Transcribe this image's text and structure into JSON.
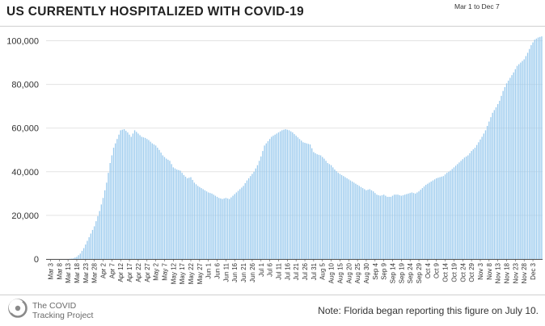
{
  "header": {
    "title": "US CURRENTLY HOSPITALIZED WITH COVID-19",
    "date_range": "Mar 1 to Dec 7"
  },
  "footer": {
    "org_name": "The COVID\nTracking Project",
    "note": "Note: Florida began reporting this figure on July 10."
  },
  "colors": {
    "bar": "#9ccbee",
    "grid": "#e3e3e3",
    "axis": "#555555"
  },
  "icons": {
    "logo": "covid-tracking-project-logo-icon"
  },
  "chart_data": {
    "type": "bar",
    "title": "US CURRENTLY HOSPITALIZED WITH COVID-19",
    "xlabel": "",
    "ylabel": "",
    "ylim": [
      0,
      105000
    ],
    "yticks": [
      0,
      20000,
      40000,
      60000,
      80000,
      100000
    ],
    "ytick_labels": [
      "0",
      "20,000",
      "40,000",
      "60,000",
      "80,000",
      "100,000"
    ],
    "xtick_labels": [
      "Mar 3",
      "Mar 8",
      "Mar 13",
      "Mar 18",
      "Mar 23",
      "Mar 28",
      "Apr 2",
      "Apr 7",
      "Apr 12",
      "Apr 17",
      "Apr 22",
      "Apr 27",
      "May 2",
      "May 7",
      "May 12",
      "May 17",
      "May 22",
      "May 27",
      "Jun 1",
      "Jun 6",
      "Jun 11",
      "Jun 16",
      "Jun 21",
      "Jun 26",
      "Jul 1",
      "Jul 6",
      "Jul 11",
      "Jul 16",
      "Jul 21",
      "Jul 26",
      "Jul 31",
      "Aug 5",
      "Aug 10",
      "Aug 15",
      "Aug 20",
      "Aug 25",
      "Aug 30",
      "Sep 4",
      "Sep 9",
      "Sep 14",
      "Sep 19",
      "Sep 24",
      "Sep 29",
      "Oct 4",
      "Oct 9",
      "Oct 14",
      "Oct 19",
      "Oct 24",
      "Oct 29",
      "Nov 3",
      "Nov 8",
      "Nov 13",
      "Nov 18",
      "Nov 23",
      "Nov 28",
      "Dec 3"
    ],
    "grid": true,
    "legend": "none",
    "first_date": "Mar 1",
    "last_date": "Dec 7",
    "anchors": [
      [
        0,
        0
      ],
      [
        12,
        0
      ],
      [
        15,
        300
      ],
      [
        17,
        1000
      ],
      [
        19,
        2500
      ],
      [
        21,
        5000
      ],
      [
        24,
        10000
      ],
      [
        27,
        15000
      ],
      [
        30,
        22000
      ],
      [
        32,
        28000
      ],
      [
        34,
        35000
      ],
      [
        36,
        44000
      ],
      [
        38,
        51000
      ],
      [
        40,
        55000
      ],
      [
        42,
        59000
      ],
      [
        44,
        59500
      ],
      [
        46,
        58000
      ],
      [
        48,
        56000
      ],
      [
        50,
        59000
      ],
      [
        52,
        57500
      ],
      [
        54,
        56000
      ],
      [
        56,
        55500
      ],
      [
        58,
        54500
      ],
      [
        60,
        53000
      ],
      [
        62,
        52000
      ],
      [
        64,
        50000
      ],
      [
        66,
        47500
      ],
      [
        68,
        46000
      ],
      [
        70,
        45000
      ],
      [
        72,
        42000
      ],
      [
        74,
        41000
      ],
      [
        76,
        40500
      ],
      [
        78,
        38500
      ],
      [
        80,
        37000
      ],
      [
        82,
        37500
      ],
      [
        84,
        35000
      ],
      [
        86,
        33500
      ],
      [
        88,
        32500
      ],
      [
        90,
        31500
      ],
      [
        92,
        30500
      ],
      [
        94,
        30000
      ],
      [
        96,
        29000
      ],
      [
        98,
        28000
      ],
      [
        100,
        27500
      ],
      [
        102,
        28000
      ],
      [
        104,
        27500
      ],
      [
        106,
        29000
      ],
      [
        108,
        30500
      ],
      [
        110,
        32000
      ],
      [
        112,
        33500
      ],
      [
        114,
        36000
      ],
      [
        116,
        38000
      ],
      [
        118,
        40000
      ],
      [
        120,
        43000
      ],
      [
        122,
        47000
      ],
      [
        124,
        52000
      ],
      [
        126,
        54000
      ],
      [
        128,
        56000
      ],
      [
        130,
        57000
      ],
      [
        132,
        58000
      ],
      [
        134,
        59000
      ],
      [
        136,
        59500
      ],
      [
        138,
        59000
      ],
      [
        140,
        58000
      ],
      [
        142,
        56500
      ],
      [
        144,
        55000
      ],
      [
        146,
        53500
      ],
      [
        148,
        53000
      ],
      [
        150,
        52500
      ],
      [
        152,
        49000
      ],
      [
        154,
        48000
      ],
      [
        156,
        47500
      ],
      [
        158,
        46000
      ],
      [
        160,
        44000
      ],
      [
        162,
        43000
      ],
      [
        164,
        41000
      ],
      [
        166,
        39500
      ],
      [
        168,
        38500
      ],
      [
        170,
        37500
      ],
      [
        172,
        36500
      ],
      [
        174,
        35500
      ],
      [
        176,
        34500
      ],
      [
        178,
        33500
      ],
      [
        180,
        32500
      ],
      [
        182,
        31500
      ],
      [
        184,
        32000
      ],
      [
        186,
        31000
      ],
      [
        188,
        29500
      ],
      [
        190,
        29000
      ],
      [
        192,
        29500
      ],
      [
        194,
        28500
      ],
      [
        196,
        28500
      ],
      [
        198,
        29500
      ],
      [
        200,
        29500
      ],
      [
        202,
        29000
      ],
      [
        204,
        29500
      ],
      [
        206,
        30000
      ],
      [
        208,
        30500
      ],
      [
        210,
        30000
      ],
      [
        212,
        31000
      ],
      [
        214,
        32500
      ],
      [
        216,
        34000
      ],
      [
        218,
        35000
      ],
      [
        220,
        36000
      ],
      [
        222,
        37000
      ],
      [
        224,
        37500
      ],
      [
        226,
        38000
      ],
      [
        228,
        39500
      ],
      [
        230,
        40500
      ],
      [
        232,
        42000
      ],
      [
        234,
        43500
      ],
      [
        236,
        45000
      ],
      [
        238,
        46500
      ],
      [
        240,
        47500
      ],
      [
        242,
        49500
      ],
      [
        244,
        51000
      ],
      [
        246,
        53500
      ],
      [
        248,
        56000
      ],
      [
        250,
        59000
      ],
      [
        252,
        63000
      ],
      [
        254,
        67000
      ],
      [
        256,
        69500
      ],
      [
        258,
        72500
      ],
      [
        260,
        77000
      ],
      [
        262,
        80500
      ],
      [
        264,
        83000
      ],
      [
        266,
        85500
      ],
      [
        268,
        88500
      ],
      [
        270,
        90000
      ],
      [
        272,
        91500
      ],
      [
        274,
        94500
      ],
      [
        276,
        98000
      ],
      [
        278,
        100500
      ],
      [
        280,
        101500
      ],
      [
        282,
        102000
      ]
    ]
  }
}
